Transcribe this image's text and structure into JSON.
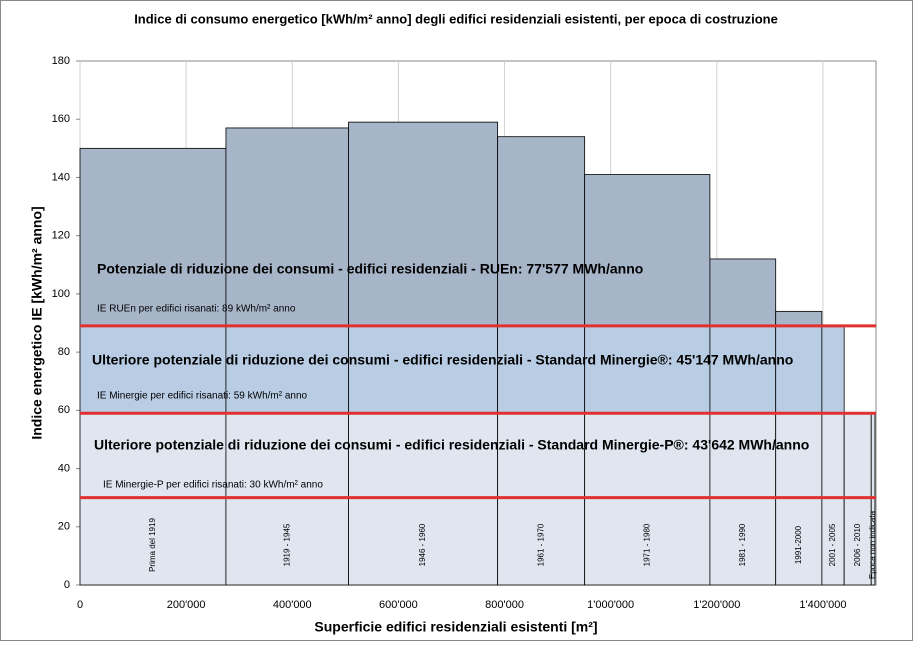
{
  "chart_data": {
    "type": "variable-width-bar",
    "title": "Indice di consumo energetico [kWh/m² anno] degli edifici residenziali esistenti, per epoca di costruzione",
    "x_label": "Superficie edifici residenziali esistenti [m²]",
    "y_label": "Indice energetico IE [kWh/m² anno]",
    "categories": [
      "Prima del 1919",
      "1919 - 1945",
      "1946 - 1960",
      "1961 - 1970",
      "1971 - 1980",
      "1981 - 1990",
      "1991-2000",
      "2001 - 2005",
      "2006 - 2010",
      "Epoca non indicata"
    ],
    "bins": [
      0,
      275000,
      506000,
      787000,
      951000,
      1187000,
      1311000,
      1398000,
      1440000,
      1491000,
      1498000
    ],
    "values": [
      150,
      157,
      159,
      154,
      141,
      112,
      94,
      89,
      59,
      59
    ],
    "band_colors": [
      "#dfe6f0",
      "#b8cce4",
      "#a7b5c9"
    ],
    "reference_lines": [
      {
        "value": 89,
        "label": "IE RUEn per edifici risanati: 89 kWh/m² anno"
      },
      {
        "value": 59,
        "label": "IE Minergie per edifici risanati: 59 kWh/m² anno"
      },
      {
        "value": 30,
        "label": "IE Minergie-P per edifici risanati: 30 kWh/m² anno"
      }
    ],
    "reference_color": "#e0302f",
    "annotations": [
      "Potenziale di riduzione dei consumi - edifici residenziali - RUEn: 77'577 MWh/anno",
      "Ulteriore potenziale di riduzione dei consumi - edifici residenziali - Standard Minergie®: 45'147 MWh/anno",
      "Ulteriore potenziale di riduzione dei consumi - edifici residenziali - Standard Minergie-P®: 43'642 MWh/anno"
    ],
    "xlim": [
      0,
      1500000
    ],
    "ylim": [
      0,
      180
    ],
    "xticks": [
      0,
      {
        "value": 200000,
        "label": "200'000"
      },
      {
        "value": 400000,
        "label": "400'000"
      },
      {
        "value": 600000,
        "label": "600'000"
      },
      {
        "value": 800000,
        "label": "800'000"
      },
      {
        "value": 1000000,
        "label": "1'000'000"
      },
      {
        "value": 1200000,
        "label": "1'200'000"
      },
      {
        "value": 1400000,
        "label": "1'400'000"
      }
    ],
    "yticks": [
      0,
      20,
      40,
      60,
      80,
      100,
      120,
      140,
      160,
      180
    ],
    "grid": true
  }
}
